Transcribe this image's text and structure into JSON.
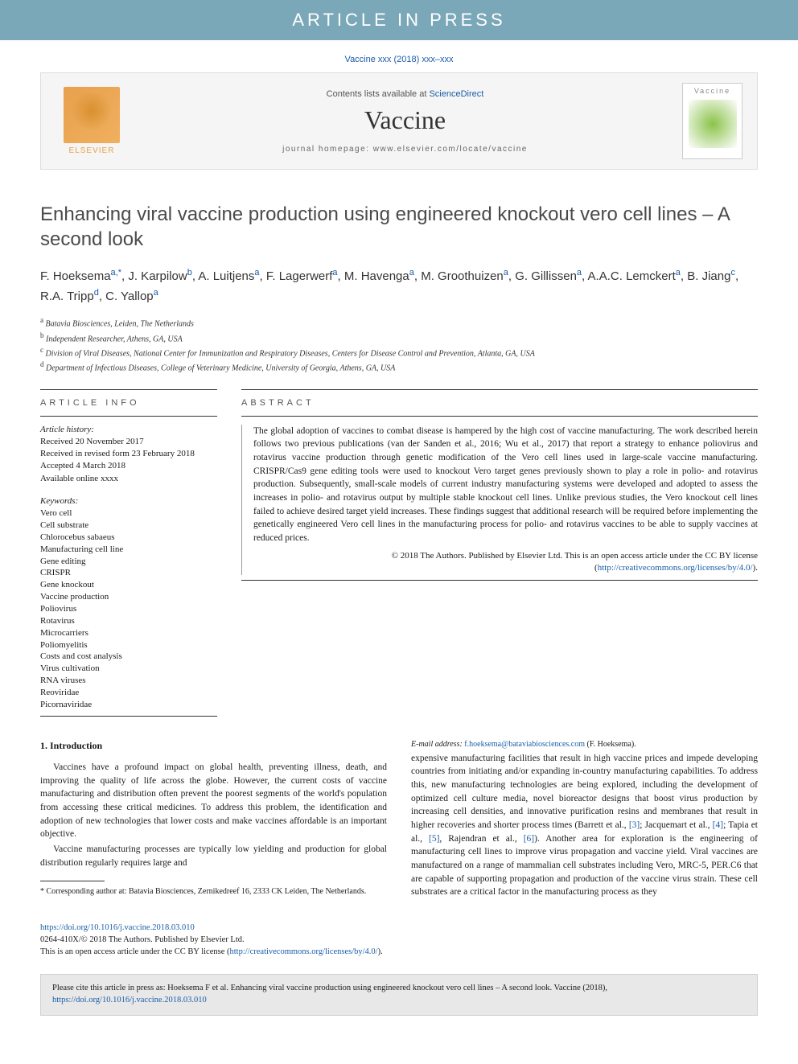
{
  "banner": "ARTICLE IN PRESS",
  "citation": "Vaccine xxx (2018) xxx–xxx",
  "header": {
    "contents_prefix": "Contents lists available at ",
    "contents_link": "ScienceDirect",
    "journal_name": "Vaccine",
    "homepage_prefix": "journal homepage: ",
    "homepage_url": "www.elsevier.com/locate/vaccine",
    "publisher": "ELSEVIER",
    "cover_label": "Vaccine"
  },
  "title": "Enhancing viral vaccine production using engineered knockout vero cell lines – A second look",
  "authors_html": "F. Hoeksema|a,*|, J. Karpilow|b|, A. Luitjens|a|, F. Lagerwerf|a|, M. Havenga|a|, M. Groothuizen|a|, G. Gillissen|a|, A.A.C. Lemckert|a|, B. Jiang|c|, R.A. Tripp|d|, C. Yallop|a|",
  "affiliations": [
    {
      "sup": "a",
      "text": "Batavia Biosciences, Leiden, The Netherlands"
    },
    {
      "sup": "b",
      "text": "Independent Researcher, Athens, GA, USA"
    },
    {
      "sup": "c",
      "text": "Division of Viral Diseases, National Center for Immunization and Respiratory Diseases, Centers for Disease Control and Prevention, Atlanta, GA, USA"
    },
    {
      "sup": "d",
      "text": "Department of Infectious Diseases, College of Veterinary Medicine, University of Georgia, Athens, GA, USA"
    }
  ],
  "info": {
    "heading": "ARTICLE INFO",
    "history_label": "Article history:",
    "history": [
      "Received 20 November 2017",
      "Received in revised form 23 February 2018",
      "Accepted 4 March 2018",
      "Available online xxxx"
    ],
    "keywords_label": "Keywords:",
    "keywords": [
      "Vero cell",
      "Cell substrate",
      "Chlorocebus sabaeus",
      "Manufacturing cell line",
      "Gene editing",
      "CRISPR",
      "Gene knockout",
      "Vaccine production",
      "Poliovirus",
      "Rotavirus",
      "Microcarriers",
      "Poliomyelitis",
      "Costs and cost analysis",
      "Virus cultivation",
      "RNA viruses",
      "Reoviridae",
      "Picornaviridae"
    ]
  },
  "abstract": {
    "heading": "ABSTRACT",
    "text": "The global adoption of vaccines to combat disease is hampered by the high cost of vaccine manufacturing. The work described herein follows two previous publications (van der Sanden et al., 2016; Wu et al., 2017) that report a strategy to enhance poliovirus and rotavirus vaccine production through genetic modification of the Vero cell lines used in large-scale vaccine manufacturing. CRISPR/Cas9 gene editing tools were used to knockout Vero target genes previously shown to play a role in polio- and rotavirus production. Subsequently, small-scale models of current industry manufacturing systems were developed and adopted to assess the increases in polio- and rotavirus output by multiple stable knockout cell lines. Unlike previous studies, the Vero knockout cell lines failed to achieve desired target yield increases. These findings suggest that additional research will be required before implementing the genetically engineered Vero cell lines in the manufacturing process for polio- and rotavirus vaccines to be able to supply vaccines at reduced prices.",
    "copyright": "© 2018 The Authors. Published by Elsevier Ltd. This is an open access article under the CC BY license (",
    "license_url_display": "http://creativecommons.org/licenses/by/4.0/",
    "copyright_close": ")."
  },
  "body": {
    "section_heading": "1. Introduction",
    "p1": "Vaccines have a profound impact on global health, preventing illness, death, and improving the quality of life across the globe. However, the current costs of vaccine manufacturing and distribution often prevent the poorest segments of the world's population from accessing these critical medicines. To address this problem, the identification and adoption of new technologies that lower costs and make vaccines affordable is an important objective.",
    "p2": "Vaccine manufacturing processes are typically low yielding and production for global distribution regularly requires large and",
    "p3_pre": "expensive manufacturing facilities that result in high vaccine prices and impede developing countries from initiating and/or expanding in-country manufacturing capabilities. To address this, new manufacturing technologies are being explored, including the development of optimized cell culture media, novel bioreactor designs that boost virus production by increasing cell densities, and innovative purification resins and membranes that result in higher recoveries and shorter process times (Barrett et al., ",
    "ref3": "[3]",
    "p3_mid1": "; Jacquemart et al., ",
    "ref4": "[4]",
    "p3_mid2": "; Tapia et al., ",
    "ref5": "[5]",
    "p3_mid3": ", Rajendran et al., ",
    "ref6": "[6]",
    "p3_post": "). Another area for exploration is the engineering of manufacturing cell lines to improve virus propagation and vaccine yield. Viral vaccines are manufactured on a range of mammalian cell substrates including Vero, MRC-5, PER.C6 that are capable of supporting propagation and production of the vaccine virus strain. These cell substrates are a critical factor in the manufacturing process as they"
  },
  "footnote": {
    "corr": "* Corresponding author at: Batavia Biosciences, Zernikedreef 16, 2333 CK Leiden, The Netherlands.",
    "email_label": "E-mail address:",
    "email": "f.hoeksema@bataviabiosciences.com",
    "email_suffix": "(F. Hoeksema)."
  },
  "doi": {
    "url": "https://doi.org/10.1016/j.vaccine.2018.03.010",
    "issn": "0264-410X/© 2018 The Authors. Published by Elsevier Ltd.",
    "license": "This is an open access article under the CC BY license (",
    "license_url": "http://creativecommons.org/licenses/by/4.0/",
    "license_close": ")."
  },
  "citebox": {
    "text_pre": "Please cite this article in press as: Hoeksema F et al. Enhancing viral vaccine production using engineered knockout vero cell lines – A second look. Vaccine (2018), ",
    "url": "https://doi.org/10.1016/j.vaccine.2018.03.010"
  },
  "colors": {
    "banner_bg": "#7ba8b8",
    "link": "#1a5ca8",
    "elsevier": "#e8a04c",
    "text": "#1a1a1a",
    "header_bg": "#f5f5f5",
    "citebox_bg": "#e8e8e8"
  },
  "typography": {
    "title_fontsize": 24,
    "body_fontsize": 11.5,
    "journal_fontsize": 32,
    "banner_fontsize": 22,
    "footnote_fontsize": 10
  }
}
